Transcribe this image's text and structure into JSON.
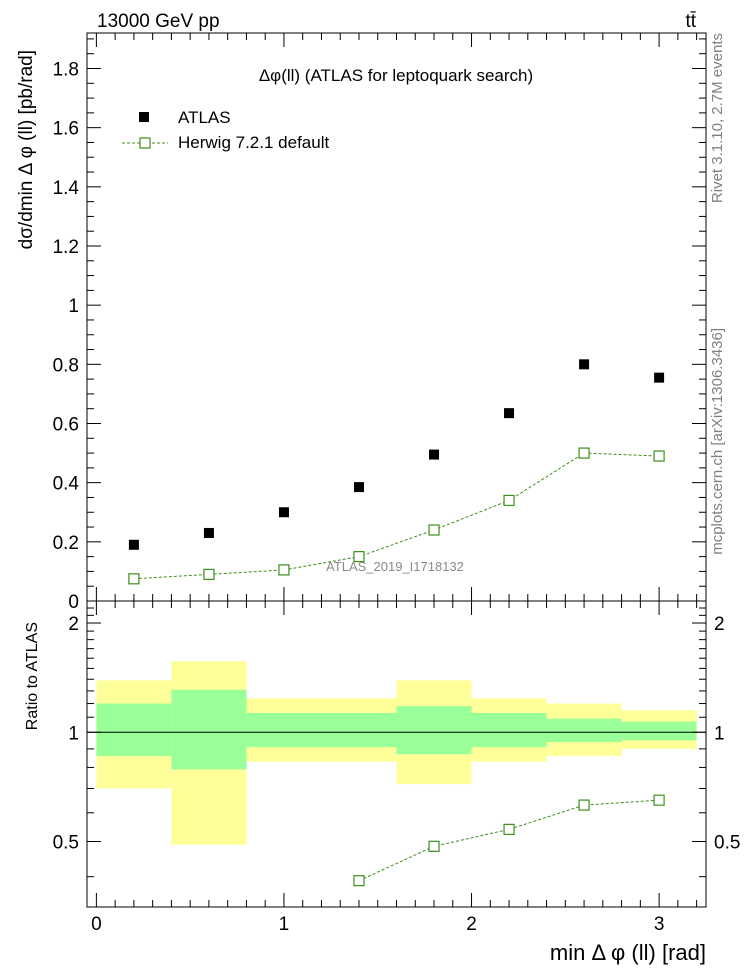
{
  "header": {
    "energy_label": "13000 GeV pp",
    "process_label": "tt̄"
  },
  "side_labels": {
    "rivet": "Rivet 3.1.10,  2.7M events",
    "mcplots": "mcplots.cern.ch [arXiv:1306.3436]"
  },
  "watermark": "ATLAS_2019_I1718132",
  "colors": {
    "data": "#000000",
    "mc": "#3b8f1c",
    "band_inner": "#99ff99",
    "band_outer": "#ffff99"
  },
  "chart_data": [
    {
      "type": "scatter",
      "title": "Δφ(ll) (ATLAS for leptoquark search)",
      "ylabel": "dσ/dmin Δ φ (ll) [pb/rad]",
      "xlabel": "",
      "xlim": [
        -0.05,
        3.25
      ],
      "ylim": [
        0,
        1.92
      ],
      "yticks": [
        0,
        0.2,
        0.4,
        0.6,
        0.8,
        1,
        1.2,
        1.4,
        1.6,
        1.8
      ],
      "ytick_labels": [
        "0",
        "0.2",
        "0.4",
        "0.6",
        "0.8",
        "1",
        "1.2",
        "1.4",
        "1.6",
        "1.8"
      ],
      "legend": [
        "ATLAS",
        "Herwig 7.2.1 default"
      ],
      "legend_position": "top-left",
      "series": [
        {
          "name": "ATLAS",
          "x": [
            0.2,
            0.6,
            1.0,
            1.4,
            1.8,
            2.2,
            2.6,
            3.0
          ],
          "y": [
            0.19,
            0.23,
            0.3,
            0.385,
            0.495,
            0.635,
            0.8,
            0.755
          ]
        },
        {
          "name": "Herwig 7.2.1 default",
          "x": [
            0.2,
            0.6,
            1.0,
            1.4,
            1.8,
            2.2,
            2.6,
            3.0
          ],
          "y": [
            0.075,
            0.09,
            0.105,
            0.15,
            0.24,
            0.34,
            0.5,
            0.49
          ]
        }
      ]
    },
    {
      "type": "line",
      "title": "",
      "ylabel": "Ratio to ATLAS",
      "xlabel": "min Δ φ (ll) [rad]",
      "xlim": [
        -0.05,
        3.25
      ],
      "ylim": [
        0.33,
        2.3
      ],
      "xticks": [
        0,
        1,
        2,
        3
      ],
      "xtick_labels": [
        "0",
        "1",
        "2",
        "3"
      ],
      "yticks": [
        0.5,
        1,
        2
      ],
      "ytick_labels": [
        "0.5",
        "1",
        "2"
      ],
      "bins": [
        [
          0.0,
          0.4
        ],
        [
          0.4,
          0.8
        ],
        [
          0.8,
          1.2
        ],
        [
          1.2,
          1.6
        ],
        [
          1.6,
          2.0
        ],
        [
          2.0,
          2.4
        ],
        [
          2.4,
          2.8
        ],
        [
          2.8,
          3.2
        ]
      ],
      "stat_band": [
        [
          0.86,
          1.2
        ],
        [
          0.79,
          1.31
        ],
        [
          0.91,
          1.13
        ],
        [
          0.91,
          1.13
        ],
        [
          0.87,
          1.18
        ],
        [
          0.91,
          1.13
        ],
        [
          0.94,
          1.09
        ],
        [
          0.95,
          1.07
        ]
      ],
      "total_band": [
        [
          0.7,
          1.39
        ],
        [
          0.49,
          1.57
        ],
        [
          0.83,
          1.24
        ],
        [
          0.83,
          1.24
        ],
        [
          0.72,
          1.39
        ],
        [
          0.83,
          1.24
        ],
        [
          0.86,
          1.2
        ],
        [
          0.9,
          1.15
        ]
      ],
      "series": [
        {
          "name": "Herwig 7.2.1 default",
          "x": [
            1.4,
            1.8,
            2.2,
            2.6,
            3.0
          ],
          "y": [
            0.39,
            0.485,
            0.54,
            0.63,
            0.65
          ]
        }
      ]
    }
  ]
}
